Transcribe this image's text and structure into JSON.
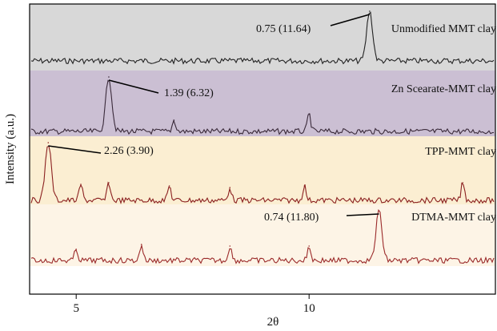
{
  "chart_data": {
    "type": "line",
    "title": "",
    "xlabel": "2θ",
    "ylabel": "Intensity (a.u.)",
    "xlim": [
      4,
      14
    ],
    "x_ticks": [
      "5",
      "10"
    ],
    "grid": false,
    "panels": [
      {
        "name": "Unmodified MMT clay",
        "background": "#d8d8d8",
        "trace_color": "#222222",
        "peaks": [
          {
            "x": 11.3,
            "label": "0.75 (11.64)"
          }
        ]
      },
      {
        "name": "Zn Scearate-MMT clay",
        "background": "#cbbfd3",
        "trace_color": "#3a2a3a",
        "peaks": [
          {
            "x": 5.7,
            "label": "1.39 (6.32)"
          },
          {
            "x": 7.1
          },
          {
            "x": 10.0
          }
        ]
      },
      {
        "name": "TPP-MMT clay",
        "background": "#fbeed2",
        "trace_color": "#8b2020",
        "peaks": [
          {
            "x": 4.4,
            "label": "2.26 (3.90)"
          },
          {
            "x": 5.1
          },
          {
            "x": 5.7
          },
          {
            "x": 7.0
          },
          {
            "x": 8.3
          },
          {
            "x": 9.9
          },
          {
            "x": 13.3
          }
        ]
      },
      {
        "name": "DTMA-MMT clay",
        "background": "#fdf4e6",
        "trace_color": "#9b2a2a",
        "peaks": [
          {
            "x": 11.5,
            "label": "0.74 (11.80)"
          },
          {
            "x": 5.0
          },
          {
            "x": 6.4
          },
          {
            "x": 8.3
          },
          {
            "x": 10.0
          }
        ]
      }
    ]
  }
}
